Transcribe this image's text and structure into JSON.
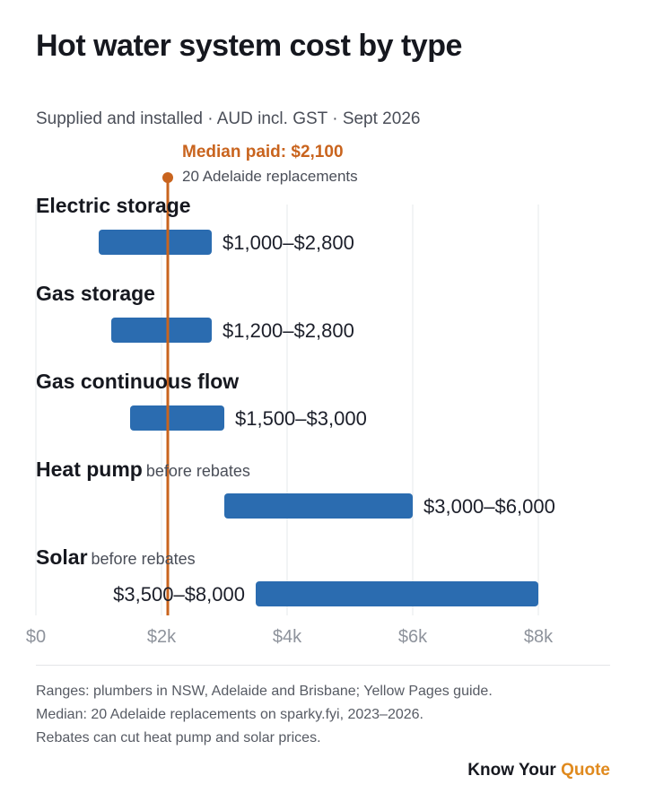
{
  "header": {
    "title": "Hot water system cost by type",
    "subtitle": "Supplied and installed · AUD incl. GST · Sept 2026"
  },
  "median": {
    "label": "Median paid: $2,100",
    "note": "20 Adelaide replacements",
    "value": 2100,
    "color": "#c9641e"
  },
  "chart_data": {
    "type": "bar",
    "orientation": "horizontal-range",
    "title": "Hot water system cost by type",
    "subtitle": "Supplied and installed · AUD incl. GST · Sept 2026",
    "xlim": [
      0,
      8000
    ],
    "xticks": [
      0,
      2000,
      4000,
      6000,
      8000
    ],
    "xtick_labels": [
      "$0",
      "$2k",
      "$4k",
      "$6k",
      "$8k"
    ],
    "grid": "vertical",
    "bar_color": "#2b6cb0",
    "categories": [
      {
        "name": "Electric storage",
        "note": "",
        "low": 1000,
        "high": 2800,
        "label": "$1,000–$2,800",
        "label_side": "right"
      },
      {
        "name": "Gas storage",
        "note": "",
        "low": 1200,
        "high": 2800,
        "label": "$1,200–$2,800",
        "label_side": "right"
      },
      {
        "name": "Gas continuous flow",
        "note": "",
        "low": 1500,
        "high": 3000,
        "label": "$1,500–$3,000",
        "label_side": "right"
      },
      {
        "name": "Heat pump",
        "note": "before rebates",
        "low": 3000,
        "high": 6000,
        "label": "$3,000–$6,000",
        "label_side": "right"
      },
      {
        "name": "Solar",
        "note": "before rebates",
        "low": 3500,
        "high": 8000,
        "label": "$3,500–$8,000",
        "label_side": "left"
      }
    ],
    "reference_line": {
      "value": 2100,
      "label": "Median paid: $2,100",
      "note": "20 Adelaide replacements"
    }
  },
  "footnotes": [
    "Ranges: plumbers in NSW, Adelaide and Brisbane; Yellow Pages guide.",
    "Median: 20 Adelaide replacements on sparky.fyi, 2023–2026.",
    "Rebates can cut heat pump and solar prices."
  ],
  "brand": {
    "prefix": "Know Your",
    "accent": "Quote",
    "accent_color": "#e08a1e"
  }
}
